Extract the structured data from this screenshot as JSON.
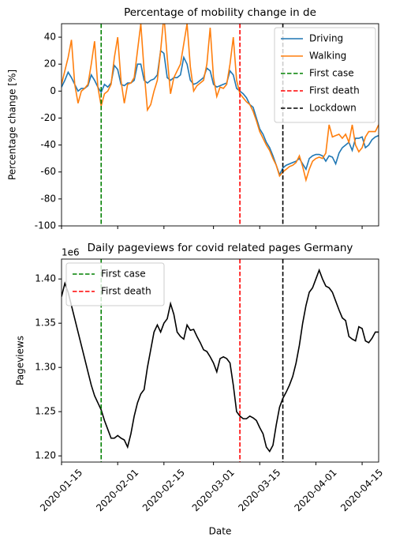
{
  "chart_data": [
    {
      "type": "line",
      "title": "Percentage of mobility change in de",
      "ylabel": "Percentage change [%]",
      "x": [
        "2020-01-15",
        "2020-01-16",
        "2020-01-17",
        "2020-01-18",
        "2020-01-19",
        "2020-01-20",
        "2020-01-21",
        "2020-01-22",
        "2020-01-23",
        "2020-01-24",
        "2020-01-25",
        "2020-01-26",
        "2020-01-27",
        "2020-01-28",
        "2020-01-29",
        "2020-01-30",
        "2020-01-31",
        "2020-02-01",
        "2020-02-02",
        "2020-02-03",
        "2020-02-04",
        "2020-02-05",
        "2020-02-06",
        "2020-02-07",
        "2020-02-08",
        "2020-02-09",
        "2020-02-10",
        "2020-02-11",
        "2020-02-12",
        "2020-02-13",
        "2020-02-14",
        "2020-02-15",
        "2020-02-16",
        "2020-02-17",
        "2020-02-18",
        "2020-02-19",
        "2020-02-20",
        "2020-02-21",
        "2020-02-22",
        "2020-02-23",
        "2020-02-24",
        "2020-02-25",
        "2020-02-26",
        "2020-02-27",
        "2020-02-28",
        "2020-02-29",
        "2020-03-01",
        "2020-03-02",
        "2020-03-03",
        "2020-03-04",
        "2020-03-05",
        "2020-03-06",
        "2020-03-07",
        "2020-03-08",
        "2020-03-09",
        "2020-03-10",
        "2020-03-11",
        "2020-03-12",
        "2020-03-13",
        "2020-03-14",
        "2020-03-15",
        "2020-03-16",
        "2020-03-17",
        "2020-03-18",
        "2020-03-19",
        "2020-03-20",
        "2020-03-21",
        "2020-03-22",
        "2020-03-23",
        "2020-03-24",
        "2020-03-25",
        "2020-03-26",
        "2020-03-27",
        "2020-03-28",
        "2020-03-29",
        "2020-03-30",
        "2020-03-31",
        "2020-04-01",
        "2020-04-02",
        "2020-04-03",
        "2020-04-04",
        "2020-04-05",
        "2020-04-06",
        "2020-04-07",
        "2020-04-08",
        "2020-04-09",
        "2020-04-10",
        "2020-04-11",
        "2020-04-12",
        "2020-04-13",
        "2020-04-14",
        "2020-04-15",
        "2020-04-16",
        "2020-04-17",
        "2020-04-18",
        "2020-04-19",
        "2020-04-20"
      ],
      "series": [
        {
          "name": "Driving",
          "color": "#1f77b4",
          "values": [
            3,
            8,
            14,
            10,
            5,
            0,
            2,
            2,
            4,
            12,
            8,
            3,
            -1,
            5,
            3,
            6,
            19,
            16,
            5,
            4,
            6,
            6,
            8,
            20,
            20,
            8,
            6,
            8,
            9,
            12,
            30,
            28,
            10,
            8,
            10,
            10,
            12,
            25,
            20,
            8,
            5,
            6,
            8,
            10,
            17,
            15,
            5,
            3,
            4,
            5,
            6,
            15,
            12,
            2,
            0,
            -2,
            -5,
            -10,
            -12,
            -20,
            -28,
            -32,
            -38,
            -42,
            -48,
            -55,
            -62,
            -57,
            -55,
            -54,
            -53,
            -52,
            -50,
            -54,
            -58,
            -50,
            -48,
            -47,
            -47,
            -48,
            -52,
            -48,
            -49,
            -54,
            -46,
            -42,
            -40,
            -38,
            -44,
            -35,
            -35,
            -34,
            -42,
            -40,
            -36,
            -34,
            -33
          ]
        },
        {
          "name": "Walking",
          "color": "#ff7f0e",
          "values": [
            5,
            15,
            25,
            38,
            5,
            -9,
            0,
            2,
            5,
            20,
            37,
            3,
            -11,
            -2,
            0,
            5,
            25,
            40,
            8,
            -9,
            5,
            6,
            10,
            30,
            50,
            15,
            -14,
            -10,
            0,
            8,
            30,
            56,
            25,
            -2,
            10,
            15,
            20,
            35,
            50,
            18,
            0,
            4,
            6,
            8,
            20,
            47,
            10,
            -4,
            3,
            2,
            5,
            20,
            40,
            8,
            -2,
            -5,
            -8,
            -10,
            -15,
            -22,
            -30,
            -35,
            -40,
            -44,
            -50,
            -55,
            -63,
            -60,
            -58,
            -56,
            -55,
            -53,
            -48,
            -56,
            -66,
            -58,
            -52,
            -50,
            -49,
            -50,
            -46,
            -25,
            -34,
            -33,
            -32,
            -35,
            -32,
            -38,
            -25,
            -40,
            -45,
            -42,
            -34,
            -30,
            -30,
            -30,
            -25
          ]
        }
      ],
      "vlines": [
        {
          "name": "First case",
          "x": "2020-01-27",
          "color": "#008000"
        },
        {
          "name": "First death",
          "x": "2020-03-09",
          "color": "#ff0000"
        },
        {
          "name": "Lockdown",
          "x": "2020-03-22",
          "color": "#000000"
        }
      ],
      "xlim": [
        "2020-01-15",
        "2020-04-20"
      ],
      "xticks": [
        "2020-01-15",
        "2020-02-01",
        "2020-02-15",
        "2020-03-01",
        "2020-03-15",
        "2020-04-01",
        "2020-04-15"
      ],
      "xticklabels": false,
      "ylim": [
        -100,
        50
      ],
      "yticks": [
        -100,
        -80,
        -60,
        -40,
        -20,
        0,
        20,
        40
      ],
      "legend": "upper right"
    },
    {
      "type": "line",
      "title": "Daily pageviews for covid related pages Germany",
      "ylabel": "Pageviews",
      "xlabel": "Date",
      "y_offset_label": "1e6",
      "x": [
        "2020-01-15",
        "2020-01-16",
        "2020-01-17",
        "2020-01-18",
        "2020-01-19",
        "2020-01-20",
        "2020-01-21",
        "2020-01-22",
        "2020-01-23",
        "2020-01-24",
        "2020-01-25",
        "2020-01-26",
        "2020-01-27",
        "2020-01-28",
        "2020-01-29",
        "2020-01-30",
        "2020-01-31",
        "2020-02-01",
        "2020-02-02",
        "2020-02-03",
        "2020-02-04",
        "2020-02-05",
        "2020-02-06",
        "2020-02-07",
        "2020-02-08",
        "2020-02-09",
        "2020-02-10",
        "2020-02-11",
        "2020-02-12",
        "2020-02-13",
        "2020-02-14",
        "2020-02-15",
        "2020-02-16",
        "2020-02-17",
        "2020-02-18",
        "2020-02-19",
        "2020-02-20",
        "2020-02-21",
        "2020-02-22",
        "2020-02-23",
        "2020-02-24",
        "2020-02-25",
        "2020-02-26",
        "2020-02-27",
        "2020-02-28",
        "2020-02-29",
        "2020-03-01",
        "2020-03-02",
        "2020-03-03",
        "2020-03-04",
        "2020-03-05",
        "2020-03-06",
        "2020-03-07",
        "2020-03-08",
        "2020-03-09",
        "2020-03-10",
        "2020-03-11",
        "2020-03-12",
        "2020-03-13",
        "2020-03-14",
        "2020-03-15",
        "2020-03-16",
        "2020-03-17",
        "2020-03-18",
        "2020-03-19",
        "2020-03-20",
        "2020-03-21",
        "2020-03-22",
        "2020-03-23",
        "2020-03-24",
        "2020-03-25",
        "2020-03-26",
        "2020-03-27",
        "2020-03-28",
        "2020-03-29",
        "2020-03-30",
        "2020-03-31",
        "2020-04-01",
        "2020-04-02",
        "2020-04-03",
        "2020-04-04",
        "2020-04-05",
        "2020-04-06",
        "2020-04-07",
        "2020-04-08",
        "2020-04-09",
        "2020-04-10",
        "2020-04-11",
        "2020-04-12",
        "2020-04-13",
        "2020-04-14",
        "2020-04-15",
        "2020-04-16",
        "2020-04-17",
        "2020-04-18",
        "2020-04-19",
        "2020-04-20"
      ],
      "series": [
        {
          "color": "#000000",
          "values": [
            1.38,
            1.395,
            1.385,
            1.37,
            1.355,
            1.34,
            1.325,
            1.31,
            1.295,
            1.28,
            1.268,
            1.26,
            1.252,
            1.24,
            1.23,
            1.22,
            1.22,
            1.223,
            1.22,
            1.218,
            1.21,
            1.225,
            1.245,
            1.26,
            1.27,
            1.275,
            1.3,
            1.32,
            1.34,
            1.348,
            1.34,
            1.35,
            1.355,
            1.372,
            1.36,
            1.34,
            1.335,
            1.332,
            1.348,
            1.342,
            1.343,
            1.335,
            1.328,
            1.32,
            1.318,
            1.312,
            1.305,
            1.295,
            1.31,
            1.312,
            1.31,
            1.305,
            1.28,
            1.25,
            1.245,
            1.242,
            1.242,
            1.245,
            1.243,
            1.24,
            1.232,
            1.225,
            1.21,
            1.205,
            1.212,
            1.235,
            1.255,
            1.265,
            1.272,
            1.28,
            1.29,
            1.305,
            1.325,
            1.35,
            1.37,
            1.385,
            1.39,
            1.4,
            1.41,
            1.4,
            1.392,
            1.39,
            1.385,
            1.375,
            1.365,
            1.356,
            1.353,
            1.335,
            1.332,
            1.33,
            1.346,
            1.344,
            1.33,
            1.328,
            1.333,
            1.34,
            1.34
          ]
        }
      ],
      "vlines": [
        {
          "name": "First case",
          "x": "2020-01-27",
          "color": "#008000"
        },
        {
          "name": "First death",
          "x": "2020-03-09",
          "color": "#ff0000"
        },
        {
          "x": "2020-03-22",
          "color": "#000000"
        }
      ],
      "xlim": [
        "2020-01-15",
        "2020-04-20"
      ],
      "xticks": [
        "2020-01-15",
        "2020-02-01",
        "2020-02-15",
        "2020-03-01",
        "2020-03-15",
        "2020-04-01",
        "2020-04-15"
      ],
      "xticklabels": true,
      "ylim": [
        1.193,
        1.4225
      ],
      "yticks": [
        {
          "value": 1.2,
          "label": "1.20"
        },
        {
          "value": 1.25,
          "label": "1.25"
        },
        {
          "value": 1.3,
          "label": "1.30"
        },
        {
          "value": 1.35,
          "label": "1.35"
        },
        {
          "value": 1.4,
          "label": "1.40"
        }
      ],
      "legend": "upper left"
    }
  ]
}
